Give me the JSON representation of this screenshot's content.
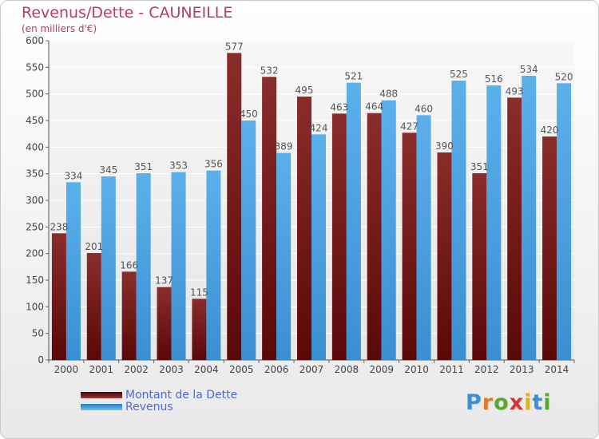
{
  "chart_data": {
    "type": "bar",
    "title": "Revenus/Dette - CAUNEILLE",
    "subtitle": "(en milliers d'€)",
    "categories": [
      "2000",
      "2001",
      "2002",
      "2003",
      "2004",
      "2005",
      "2006",
      "2007",
      "2008",
      "2009",
      "2010",
      "2011",
      "2012",
      "2013",
      "2014"
    ],
    "series": [
      {
        "name": "Montant de la Dette",
        "color": "#7a1e1e",
        "values": [
          238,
          201,
          166,
          137,
          115,
          577,
          532,
          495,
          463,
          464,
          427,
          390,
          351,
          493,
          420
        ]
      },
      {
        "name": "Revenus",
        "color": "#4aa3e0",
        "values": [
          334,
          345,
          351,
          353,
          356,
          450,
          389,
          424,
          521,
          488,
          460,
          525,
          516,
          534,
          520
        ]
      }
    ],
    "y_ticks": [
      0,
      50,
      100,
      150,
      200,
      250,
      300,
      350,
      400,
      450,
      500,
      550,
      600
    ],
    "ylim": [
      0,
      600
    ],
    "grid": true,
    "legend_position": "bottom-left"
  },
  "logo": {
    "letters": [
      {
        "ch": "P",
        "color": "#3c8fd6"
      },
      {
        "ch": "r",
        "color": "#e07a2a"
      },
      {
        "ch": "o",
        "color": "#5aa832"
      },
      {
        "ch": "x",
        "color": "#d8322f"
      },
      {
        "ch": "i",
        "color": "#e0b020"
      },
      {
        "ch": "t",
        "color": "#3c8fd6"
      },
      {
        "ch": "i",
        "color": "#5aa832"
      }
    ]
  }
}
